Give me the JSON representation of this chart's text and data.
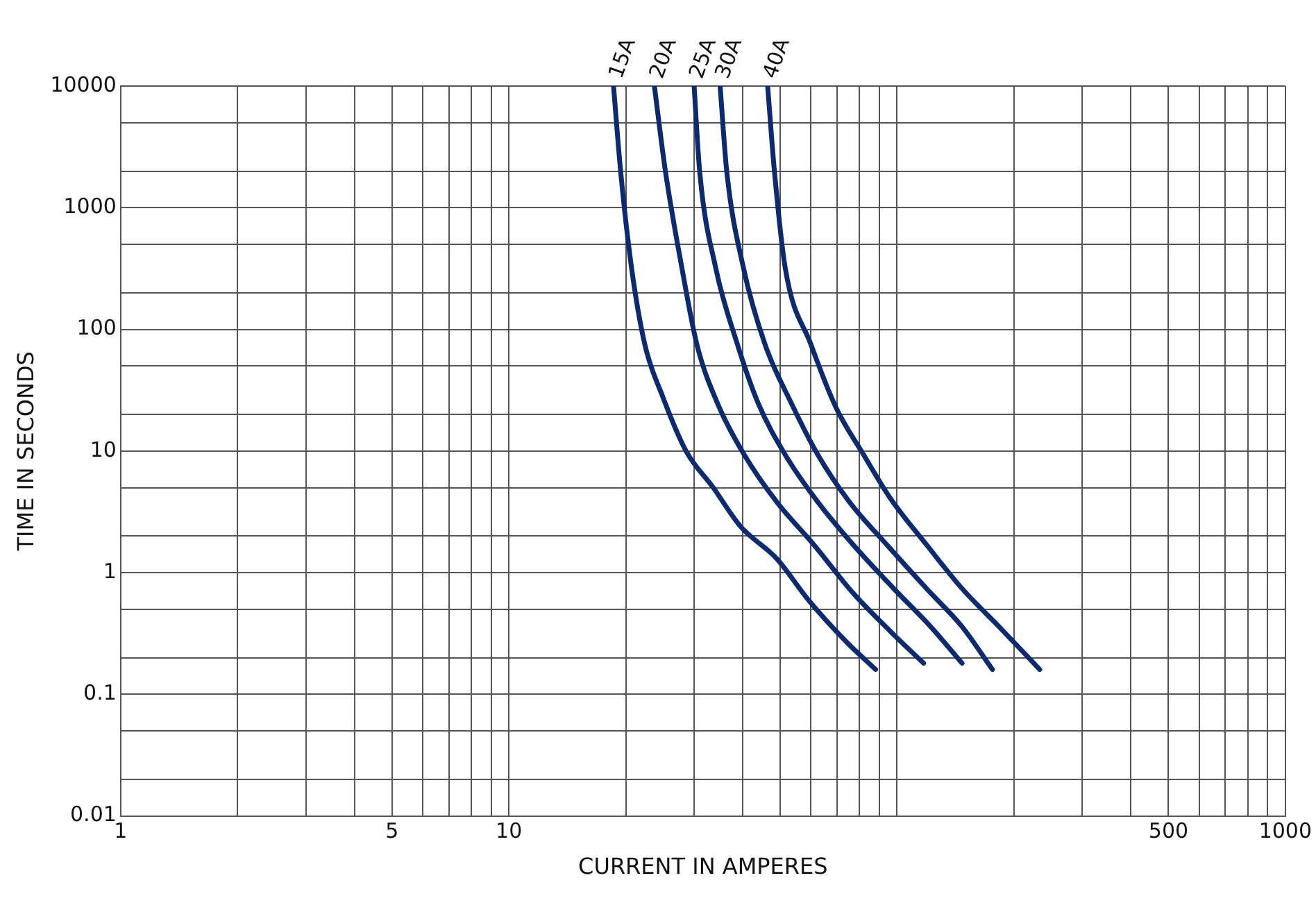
{
  "chart_data": {
    "type": "line",
    "xlabel": "CURRENT IN AMPERES",
    "ylabel": "TIME IN SECONDS",
    "log": "xy",
    "grid": true,
    "legend": false,
    "marker": "none",
    "line_style": "solid",
    "xlim": [
      1,
      1000
    ],
    "xticks": [
      1,
      {
        "value": 2,
        "label": null
      },
      {
        "value": 3,
        "label": null
      },
      {
        "value": 4,
        "label": null
      },
      5,
      {
        "value": 6,
        "label": null
      },
      {
        "value": 7,
        "label": null
      },
      {
        "value": 8,
        "label": null
      },
      {
        "value": 9,
        "label": null
      },
      10,
      {
        "value": 20,
        "label": null
      },
      {
        "value": 30,
        "label": null
      },
      {
        "value": 40,
        "label": null
      },
      {
        "value": 50,
        "label": null
      },
      {
        "value": 60,
        "label": null
      },
      {
        "value": 70,
        "label": null
      },
      {
        "value": 80,
        "label": null
      },
      {
        "value": 90,
        "label": null
      },
      {
        "value": 100,
        "label": null
      },
      {
        "value": 200,
        "label": null
      },
      {
        "value": 300,
        "label": null
      },
      {
        "value": 400,
        "label": null
      },
      500,
      {
        "value": 600,
        "label": null
      },
      {
        "value": 700,
        "label": null
      },
      {
        "value": 800,
        "label": null
      },
      {
        "value": 900,
        "label": null
      },
      1000
    ],
    "ylim": [
      0.01,
      10000
    ],
    "yticks": [
      0.01,
      {
        "value": 0.02,
        "label": null
      },
      {
        "value": 0.05,
        "label": null
      },
      0.1,
      {
        "value": 0.2,
        "label": null
      },
      {
        "value": 0.5,
        "label": null
      },
      1,
      {
        "value": 2,
        "label": null
      },
      {
        "value": 5,
        "label": null
      },
      10,
      {
        "value": 20,
        "label": null
      },
      {
        "value": 50,
        "label": null
      },
      100,
      {
        "value": 200,
        "label": null
      },
      {
        "value": 500,
        "label": null
      },
      1000,
      {
        "value": 2000,
        "label": null
      },
      {
        "value": 5000,
        "label": null
      },
      10000
    ],
    "series": [
      {
        "name": "15A",
        "color": "#0b2a6f",
        "x": [
          18.6,
          19.4,
          20.7,
          22.4,
          24.9,
          28.6,
          33.6,
          39.5,
          49,
          59,
          74,
          88
        ],
        "values": [
          10000,
          2000,
          320,
          75,
          28,
          10,
          5,
          2.4,
          1.3,
          0.6,
          0.27,
          0.16
        ]
      },
      {
        "name": "20A",
        "color": "#0b2a6f",
        "x": [
          23.7,
          25.3,
          27.9,
          30.5,
          34.4,
          40.4,
          49,
          61,
          77,
          96,
          117
        ],
        "values": [
          10000,
          2000,
          320,
          75,
          25,
          9.3,
          3.8,
          1.7,
          0.68,
          0.33,
          0.18
        ]
      },
      {
        "name": "25A",
        "color": "#0b2a6f",
        "x": [
          30,
          31,
          34.1,
          38.8,
          43.8,
          51.5,
          62.5,
          77,
          98,
          122,
          147
        ],
        "values": [
          10000,
          2000,
          320,
          75,
          25,
          9.3,
          3.8,
          1.7,
          0.74,
          0.36,
          0.18
        ]
      },
      {
        "name": "30A",
        "color": "#0b2a6f",
        "x": [
          35,
          36.4,
          40.2,
          45.7,
          53.3,
          62.5,
          75.4,
          94,
          119,
          147,
          176
        ],
        "values": [
          10000,
          2000,
          320,
          75,
          25,
          9.3,
          3.8,
          1.7,
          0.74,
          0.36,
          0.16
        ]
      },
      {
        "name": "40A",
        "color": "#0b2a6f",
        "x": [
          46.4,
          48.3,
          51.5,
          60,
          69.5,
          82,
          96,
          119,
          147,
          183,
          233
        ],
        "values": [
          10000,
          2000,
          320,
          75,
          23,
          9.3,
          4.1,
          1.7,
          0.74,
          0.36,
          0.16
        ]
      }
    ]
  }
}
